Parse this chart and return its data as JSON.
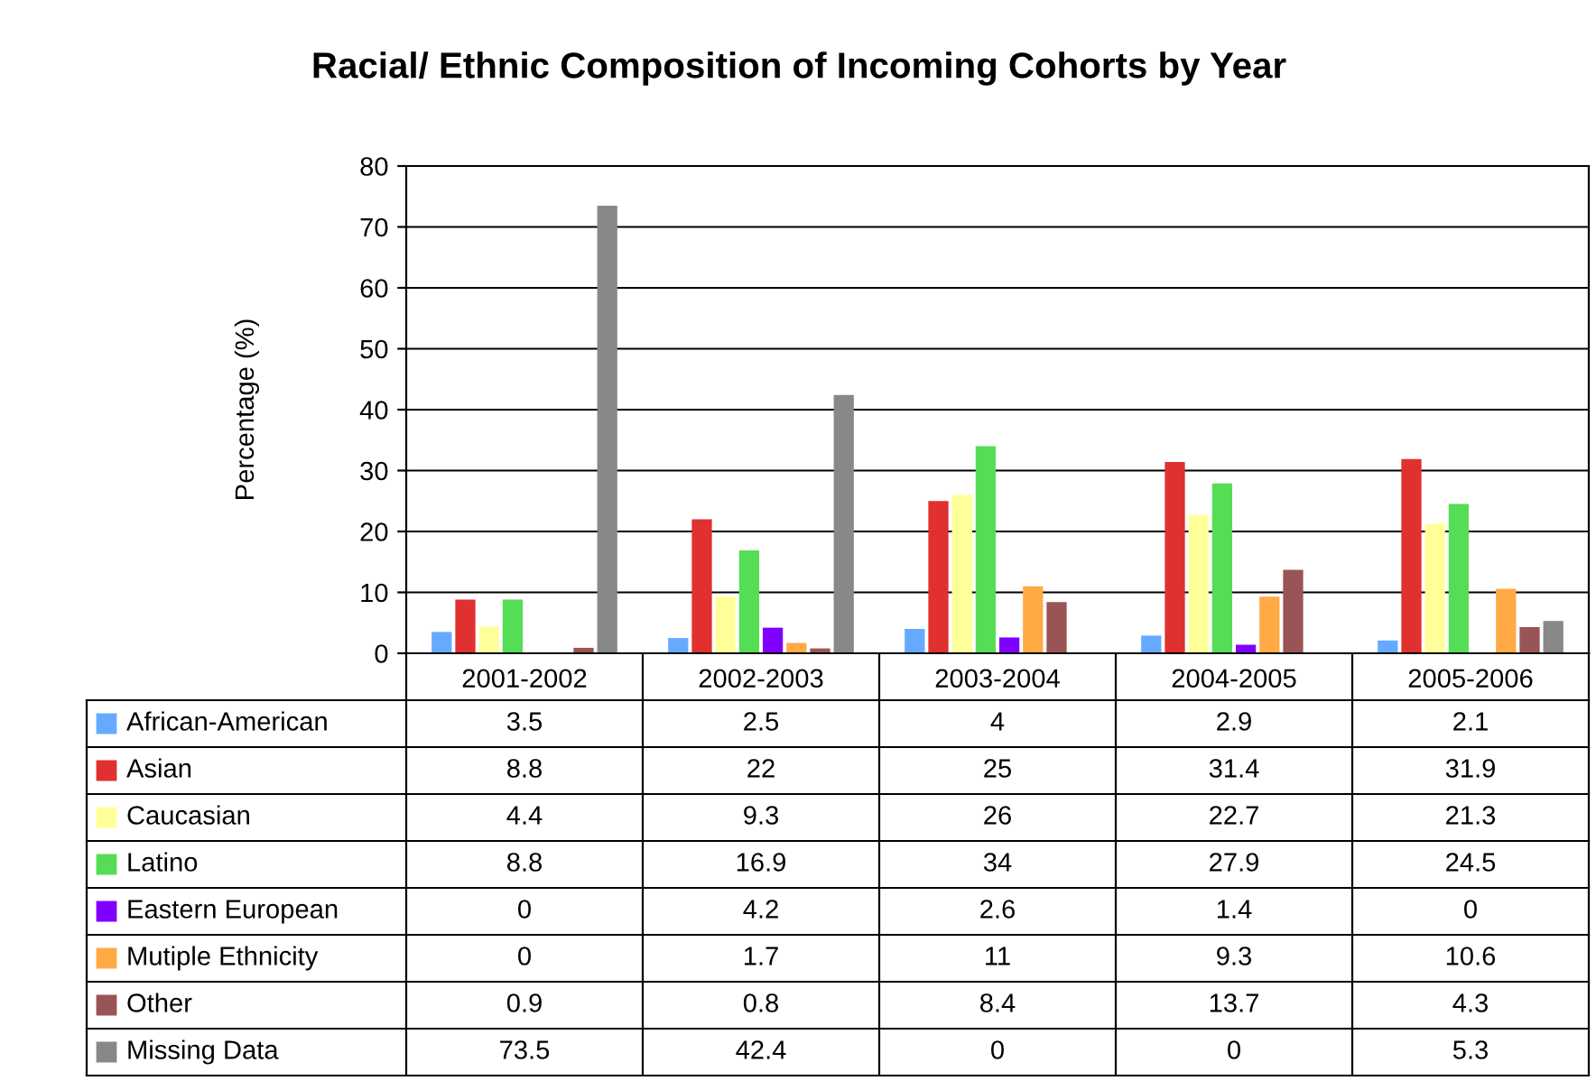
{
  "chart_data": {
    "type": "bar",
    "title": "Racial/ Ethnic Composition of Incoming Cohorts by Year",
    "ylabel": "Percentage (%)",
    "categories": [
      "2001-2002",
      "2002-2003",
      "2003-2004",
      "2004-2005",
      "2005-2006"
    ],
    "series": [
      {
        "name": "African-American",
        "color": "#66aaff",
        "values": [
          3.5,
          2.5,
          4,
          2.9,
          2.1
        ]
      },
      {
        "name": "Asian",
        "color": "#e03030",
        "values": [
          8.8,
          22,
          25,
          31.4,
          31.9
        ]
      },
      {
        "name": "Caucasian",
        "color": "#ffff99",
        "values": [
          4.4,
          9.3,
          26,
          22.7,
          21.3
        ]
      },
      {
        "name": "Latino",
        "color": "#55dd55",
        "values": [
          8.8,
          16.9,
          34,
          27.9,
          24.5
        ]
      },
      {
        "name": "Eastern European",
        "color": "#7f00ff",
        "values": [
          0,
          4.2,
          2.6,
          1.4,
          0
        ]
      },
      {
        "name": "Mutiple Ethnicity",
        "color": "#ffaa44",
        "values": [
          0,
          1.7,
          11,
          9.3,
          10.6
        ]
      },
      {
        "name": "Other",
        "color": "#995555",
        "values": [
          0.9,
          0.8,
          8.4,
          13.7,
          4.3
        ]
      },
      {
        "name": "Missing Data",
        "color": "#888888",
        "values": [
          73.5,
          42.4,
          0,
          0,
          5.3
        ]
      }
    ],
    "ylim": [
      0,
      80
    ],
    "yticks": [
      0,
      10,
      20,
      30,
      40,
      50,
      60,
      70,
      80
    ],
    "grid": "y",
    "data_labels": true,
    "legend": "bottom left"
  }
}
